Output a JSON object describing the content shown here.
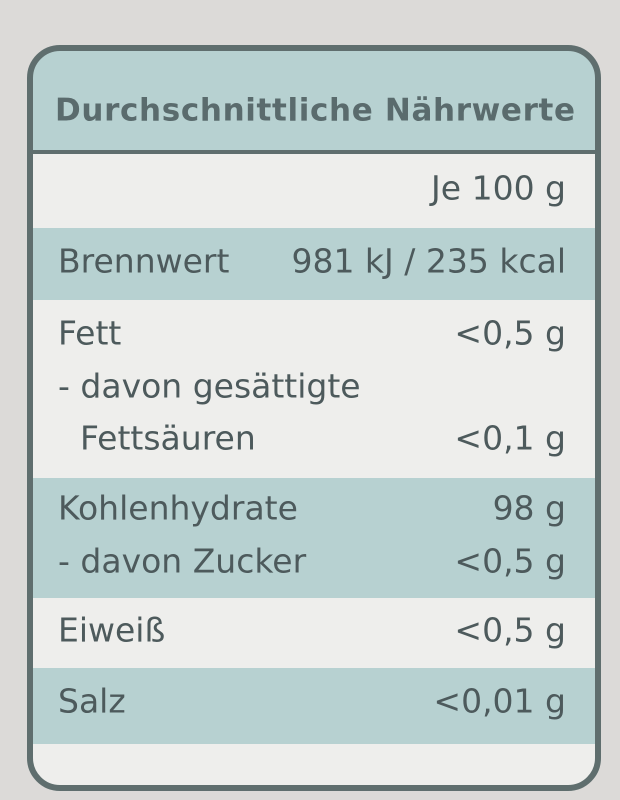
{
  "header": {
    "title": "Durchschnittliche Nährwerte"
  },
  "table": {
    "column_header": "Je 100 g",
    "rows": [
      {
        "label": "Brennwert",
        "value": "981 kJ / 235 kcal"
      },
      {
        "label": "Fett",
        "value": "<0,5 g"
      },
      {
        "label": "- davon gesättigte",
        "continuation": "Fettsäuren",
        "value": "<0,1 g"
      },
      {
        "label": "Kohlenhydrate",
        "value": "98 g"
      },
      {
        "label": "- davon Zucker",
        "value": "<0,5 g"
      },
      {
        "label": "Eiweiß",
        "value": "<0,5 g"
      },
      {
        "label": "Salz",
        "value": "<0,01 g"
      }
    ]
  }
}
